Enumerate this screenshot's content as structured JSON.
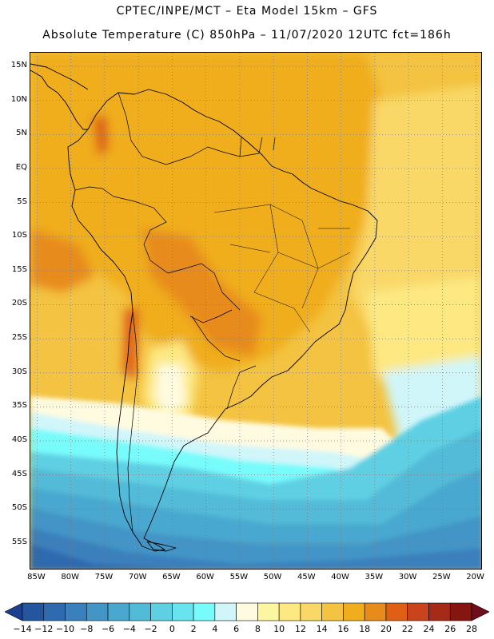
{
  "header": {
    "line1": "CPTEC/INPE/MCT –  Eta Model 15km – GFS",
    "line2": "Absolute Temperature (C) 850hPa – 11/07/2020 12UTC fct=186h"
  },
  "map": {
    "extent": {
      "lon_min": -86,
      "lon_max": -19,
      "lat_min": -59,
      "lat_max": 17
    },
    "lat_ticks": [
      {
        "value": 15,
        "label": "15N"
      },
      {
        "value": 10,
        "label": "10N"
      },
      {
        "value": 5,
        "label": "5N"
      },
      {
        "value": 0,
        "label": "EQ"
      },
      {
        "value": -5,
        "label": "5S"
      },
      {
        "value": -10,
        "label": "10S"
      },
      {
        "value": -15,
        "label": "15S"
      },
      {
        "value": -20,
        "label": "20S"
      },
      {
        "value": -25,
        "label": "25S"
      },
      {
        "value": -30,
        "label": "30S"
      },
      {
        "value": -35,
        "label": "35S"
      },
      {
        "value": -40,
        "label": "40S"
      },
      {
        "value": -45,
        "label": "45S"
      },
      {
        "value": -50,
        "label": "50S"
      },
      {
        "value": -55,
        "label": "55S"
      }
    ],
    "lon_ticks": [
      {
        "value": -85,
        "label": "85W"
      },
      {
        "value": -80,
        "label": "80W"
      },
      {
        "value": -75,
        "label": "75W"
      },
      {
        "value": -70,
        "label": "70W"
      },
      {
        "value": -65,
        "label": "65W"
      },
      {
        "value": -60,
        "label": "60W"
      },
      {
        "value": -55,
        "label": "55W"
      },
      {
        "value": -50,
        "label": "50W"
      },
      {
        "value": -45,
        "label": "45W"
      },
      {
        "value": -40,
        "label": "40W"
      },
      {
        "value": -35,
        "label": "35W"
      },
      {
        "value": -30,
        "label": "30W"
      },
      {
        "value": -25,
        "label": "25W"
      },
      {
        "value": -20,
        "label": "20W"
      }
    ]
  },
  "colorbar": {
    "labels": [
      "-14",
      "-12",
      "-10",
      "-8",
      "-6",
      "-4",
      "-2",
      "0",
      "2",
      "4",
      "6",
      "8",
      "10",
      "12",
      "14",
      "16",
      "18",
      "20",
      "22",
      "24",
      "26",
      "28"
    ],
    "colors": [
      "#1c3f8f",
      "#24559f",
      "#2f6aaf",
      "#3a80bd",
      "#4295c6",
      "#4aa8cf",
      "#52bbd8",
      "#5fd0e3",
      "#67e4ef",
      "#78fbfb",
      "#d0f6fa",
      "#fffbe0",
      "#fdf6a0",
      "#fde882",
      "#f9d868",
      "#f3c341",
      "#f0ad1d",
      "#e78b1a",
      "#df6015",
      "#c9431d",
      "#a62a18",
      "#84160f",
      "#6e0e1a"
    ]
  },
  "colors": {
    "warm_land": "#f0ad1d",
    "hot_core": "#df6015",
    "ocean_cold": "#3a80bd",
    "coast_line": "#000000"
  }
}
